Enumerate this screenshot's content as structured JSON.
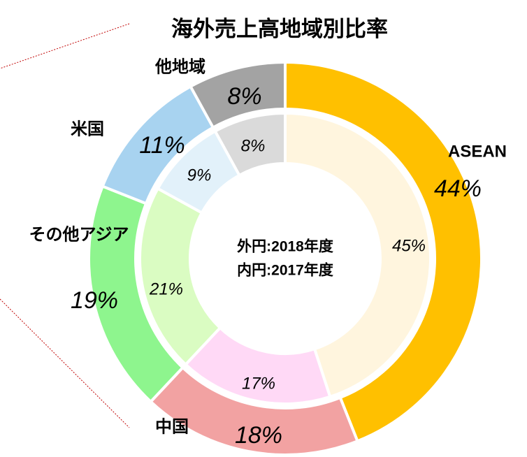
{
  "chart_data": {
    "type": "donut",
    "title": "海外売上高地域別比率",
    "center_labels": [
      "外円:2018年度",
      "内円:2017年度"
    ],
    "categories": [
      "ASEAN",
      "中国",
      "その他アジア",
      "米国",
      "他地域"
    ],
    "outer": {
      "values": [
        44,
        18,
        19,
        11,
        8
      ],
      "value_labels": [
        "44%",
        "18%",
        "19%",
        "11%",
        "8%"
      ],
      "colors": [
        "#FFC000",
        "#F2A2A2",
        "#8EF58E",
        "#A8D3F0",
        "#A3A3A3"
      ]
    },
    "inner": {
      "values": [
        45,
        17,
        21,
        9,
        8
      ],
      "value_labels": [
        "45%",
        "17%",
        "21%",
        "9%",
        "8%"
      ],
      "colors": [
        "#FFF5DE",
        "#FFD9F6",
        "#DAFCC2",
        "#E2F1FA",
        "#DADADA"
      ]
    }
  }
}
